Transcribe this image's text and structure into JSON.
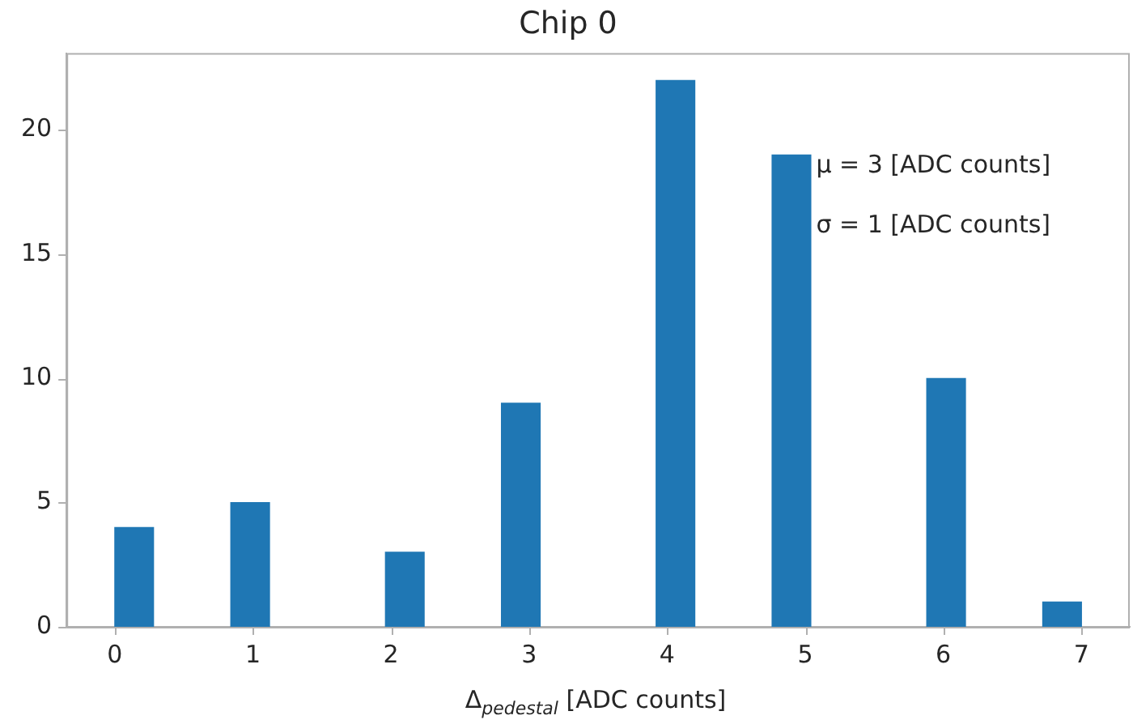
{
  "chart_data": {
    "type": "histogram",
    "title": "Chip 0",
    "xlabel": "Δ$_{pedestal}$ [ADC counts]",
    "bins": [
      0,
      0.28,
      0.84,
      1.12,
      1.96,
      2.24,
      2.8,
      3.08,
      3.92,
      4.2,
      4.76,
      5.04,
      5.88,
      6.16,
      6.72,
      7
    ],
    "values": [
      4,
      0,
      5,
      0,
      3,
      0,
      9,
      0,
      22,
      0,
      19,
      0,
      10,
      0,
      1
    ],
    "color": "#1f77b4",
    "xlim": [
      -0.35,
      7.35
    ],
    "xticks": [
      0,
      1,
      2,
      3,
      4,
      5,
      6,
      7
    ],
    "ylim": [
      0,
      23.1
    ],
    "yticks": [
      0,
      5,
      10,
      15,
      20
    ],
    "annotations": [
      "μ = 3 [ADC counts]",
      "σ = 1 [ADC counts]"
    ],
    "grid": false,
    "legend": false
  }
}
